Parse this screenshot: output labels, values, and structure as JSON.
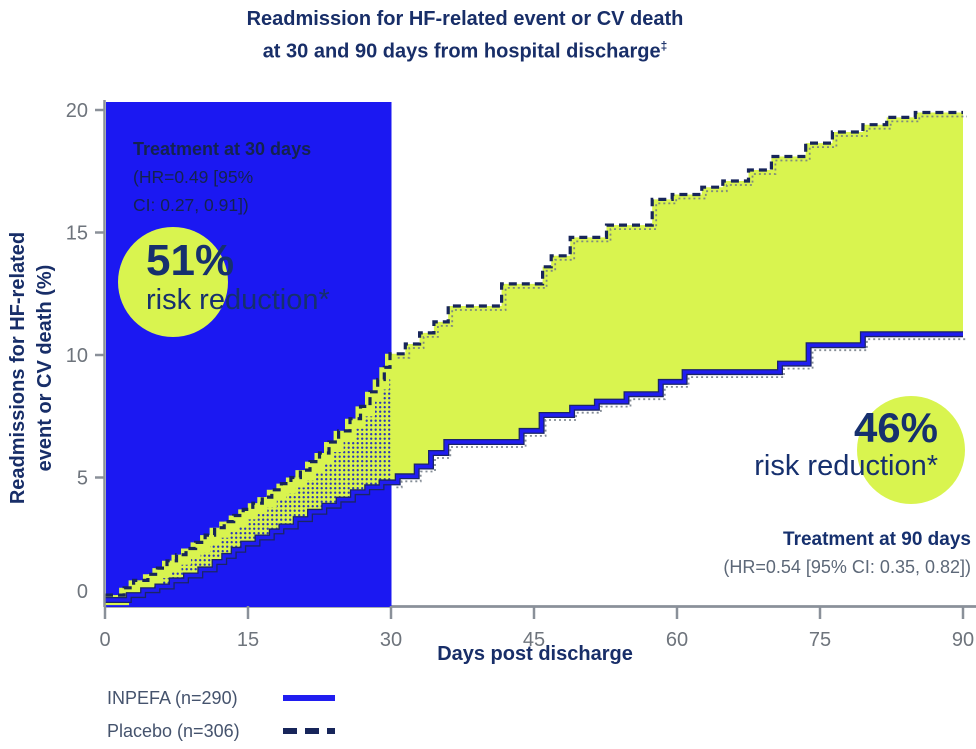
{
  "title": {
    "line1": "Readmission for HF-related event or CV death",
    "line2": "at 30 and 90 days from hospital discharge",
    "line2_sup": "‡"
  },
  "y_axis": {
    "label_line1": "Readmissions for HF-related",
    "label_line2": "event or CV death (%)"
  },
  "x_axis": {
    "label": "Days post discharge"
  },
  "annotations": {
    "treatment30": {
      "title": "Treatment at 30 days",
      "hr_line1": "(HR=0.49 [95%",
      "hr_line2": "CI: 0.27, 0.91])",
      "badge_value": "51%",
      "badge_label": "risk reduction*"
    },
    "treatment90": {
      "title": "Treatment at 90 days",
      "hr": "(HR=0.54 [95% CI: 0.35, 0.82])",
      "badge_value": "46%",
      "badge_label": "risk reduction*"
    }
  },
  "legend": {
    "inpefa_label": "INPEFA (n=290)",
    "placebo_label": "Placebo (n=306)"
  },
  "colors": {
    "navy_text": "#182e68",
    "deep_navy_line": "#17255a",
    "bright_blue": "#201df0",
    "highlight_box_blue": "#1b18f2",
    "accent_yellow": "#d9f44f",
    "axis_gray": "#8a9099",
    "tick_text_gray": "#6e747c",
    "hr_text_gray": "#5d6878",
    "legend_text_gray": "#45536d"
  },
  "chart_data": {
    "type": "line",
    "step": true,
    "title": "Readmission for HF-related event or CV death at 30 and 90 days from hospital discharge",
    "xlabel": "Days post discharge",
    "ylabel": "Readmissions for HF-related event or CV death (%)",
    "xlim": [
      0,
      90
    ],
    "ylim": [
      0,
      20
    ],
    "x_ticks": [
      0,
      15,
      30,
      45,
      60,
      75,
      90
    ],
    "y_ticks": [
      0,
      5,
      10,
      15,
      20
    ],
    "grid": false,
    "legend_position": "bottom-left",
    "highlight_region": {
      "x0": 0,
      "x1": 30,
      "color": "#1b18f2",
      "meaning": "Treatment at 30 days window"
    },
    "between_fill_color": "#d9f44f",
    "series": [
      {
        "name": "Placebo (n=306)",
        "style": "dashed",
        "color": "#17255a",
        "points": [
          [
            0,
            0.2
          ],
          [
            2,
            0.5
          ],
          [
            3,
            0.8
          ],
          [
            4.5,
            1.05
          ],
          [
            5.5,
            1.3
          ],
          [
            6.5,
            1.6
          ],
          [
            7.5,
            1.85
          ],
          [
            8.5,
            2.1
          ],
          [
            9.5,
            2.35
          ],
          [
            10.5,
            2.65
          ],
          [
            11.5,
            2.95
          ],
          [
            12.5,
            3.2
          ],
          [
            13.5,
            3.45
          ],
          [
            14.5,
            3.7
          ],
          [
            15.5,
            3.95
          ],
          [
            16.5,
            4.2
          ],
          [
            17.5,
            4.5
          ],
          [
            18.5,
            4.75
          ],
          [
            19.5,
            5.0
          ],
          [
            20.5,
            5.3
          ],
          [
            21.5,
            5.65
          ],
          [
            22.5,
            6.0
          ],
          [
            23.5,
            6.45
          ],
          [
            24.5,
            6.9
          ],
          [
            25.7,
            7.4
          ],
          [
            26.8,
            7.9
          ],
          [
            27.8,
            8.5
          ],
          [
            28.6,
            9.0
          ],
          [
            29.3,
            9.5
          ],
          [
            29.9,
            10.05
          ],
          [
            31.5,
            10.45
          ],
          [
            33,
            10.9
          ],
          [
            34.5,
            11.35
          ],
          [
            36,
            12.0
          ],
          [
            41.6,
            12.9
          ],
          [
            45.9,
            13.6
          ],
          [
            46.8,
            14.05
          ],
          [
            48.8,
            14.8
          ],
          [
            52.6,
            15.3
          ],
          [
            57.4,
            16.35
          ],
          [
            59.5,
            16.55
          ],
          [
            62.6,
            16.85
          ],
          [
            64.8,
            17.1
          ],
          [
            67.5,
            17.55
          ],
          [
            69.9,
            18.1
          ],
          [
            73.5,
            18.65
          ],
          [
            76.3,
            19.1
          ],
          [
            79.5,
            19.4
          ],
          [
            82,
            19.7
          ],
          [
            85,
            19.9
          ],
          [
            90,
            19.9
          ]
        ]
      },
      {
        "name": "INPEFA (n=290)",
        "style": "solid",
        "color": "#201df0",
        "points": [
          [
            0,
            0
          ],
          [
            2.5,
            0.2
          ],
          [
            4,
            0.4
          ],
          [
            5.5,
            0.55
          ],
          [
            7,
            0.8
          ],
          [
            8.5,
            1.0
          ],
          [
            10,
            1.25
          ],
          [
            11.5,
            1.55
          ],
          [
            12.5,
            1.8
          ],
          [
            13.5,
            2.05
          ],
          [
            14.5,
            2.3
          ],
          [
            16,
            2.55
          ],
          [
            17.5,
            2.8
          ],
          [
            18.5,
            3.0
          ],
          [
            20,
            3.3
          ],
          [
            21.5,
            3.6
          ],
          [
            23,
            3.85
          ],
          [
            24.5,
            4.1
          ],
          [
            26,
            4.4
          ],
          [
            27.5,
            4.6
          ],
          [
            29,
            4.8
          ],
          [
            30.7,
            5.05
          ],
          [
            32.7,
            5.45
          ],
          [
            34.2,
            6.0
          ],
          [
            35.8,
            6.45
          ],
          [
            43.7,
            6.9
          ],
          [
            45.8,
            7.55
          ],
          [
            49,
            7.85
          ],
          [
            51.6,
            8.1
          ],
          [
            54.7,
            8.4
          ],
          [
            58.3,
            8.9
          ],
          [
            60.8,
            9.3
          ],
          [
            70.8,
            9.65
          ],
          [
            73.8,
            10.4
          ],
          [
            79.5,
            10.85
          ],
          [
            90,
            10.85
          ]
        ]
      }
    ]
  }
}
